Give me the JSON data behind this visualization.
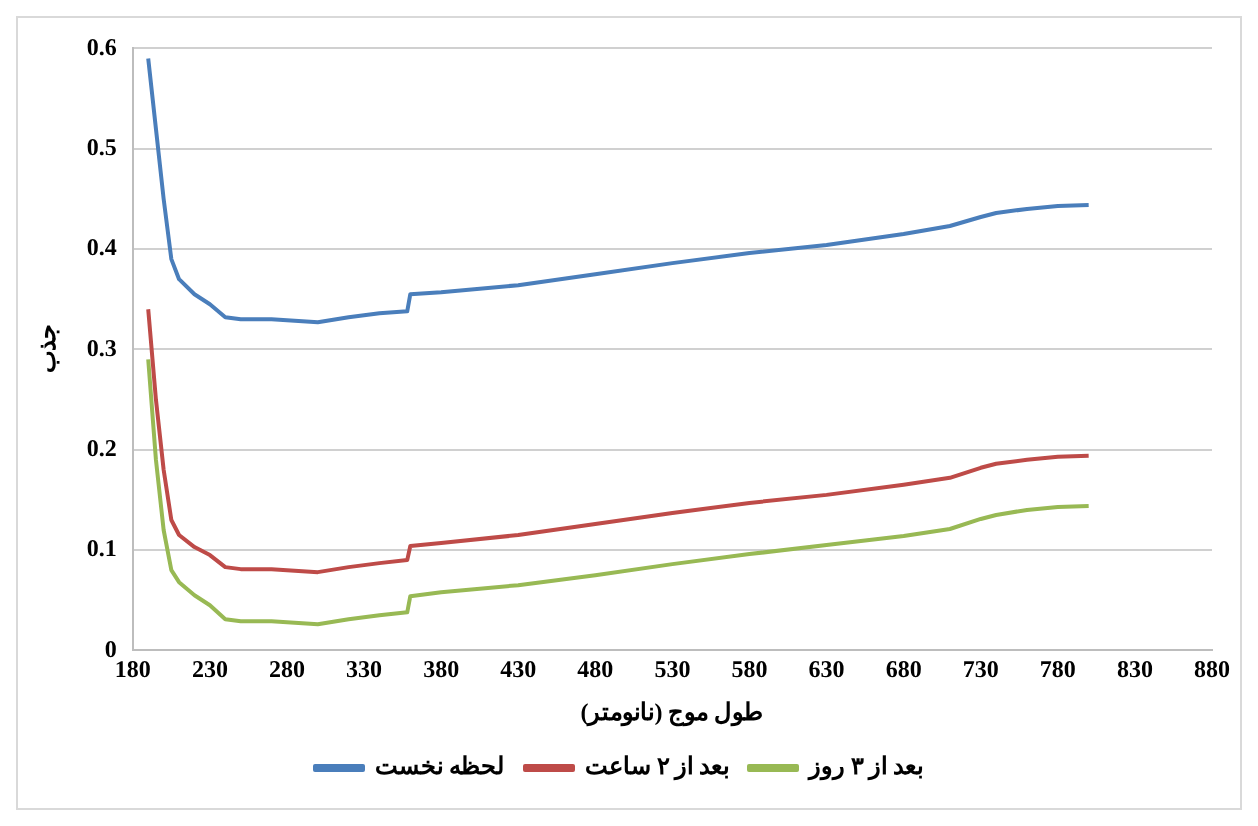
{
  "chart_data": {
    "type": "line",
    "xlabel": "طول موج (نانومتر)",
    "ylabel": "جذب",
    "xlim": [
      180,
      880
    ],
    "xticks": [
      180,
      230,
      280,
      330,
      380,
      430,
      480,
      530,
      580,
      630,
      680,
      730,
      780,
      830,
      880
    ],
    "ylim": [
      0,
      0.6
    ],
    "yticks": [
      0,
      0.1,
      0.2,
      0.3,
      0.4,
      0.5,
      0.6
    ],
    "grid": "y",
    "legend": "bottom",
    "marker": "none",
    "line_style": "solid",
    "series": [
      {
        "name": "لحظه نخست",
        "color": "#4a7ebb",
        "x": [
          190,
          195,
          200,
          205,
          210,
          220,
          230,
          240,
          250,
          270,
          300,
          320,
          340,
          358,
          360,
          380,
          430,
          480,
          530,
          580,
          630,
          680,
          710,
          730,
          740,
          760,
          780,
          800
        ],
        "values": [
          0.59,
          0.52,
          0.45,
          0.39,
          0.37,
          0.355,
          0.345,
          0.332,
          0.33,
          0.33,
          0.327,
          0.332,
          0.336,
          0.338,
          0.355,
          0.357,
          0.364,
          0.375,
          0.386,
          0.396,
          0.404,
          0.415,
          0.423,
          0.432,
          0.436,
          0.44,
          0.443,
          0.444
        ]
      },
      {
        "name": "بعد از ۲ ساعت",
        "color": "#be4b48",
        "x": [
          190,
          195,
          200,
          205,
          210,
          220,
          230,
          240,
          250,
          270,
          300,
          320,
          340,
          358,
          360,
          380,
          430,
          480,
          530,
          580,
          630,
          680,
          710,
          730,
          740,
          760,
          780,
          800
        ],
        "values": [
          0.34,
          0.25,
          0.18,
          0.13,
          0.115,
          0.103,
          0.095,
          0.083,
          0.081,
          0.081,
          0.078,
          0.083,
          0.087,
          0.09,
          0.104,
          0.107,
          0.115,
          0.126,
          0.137,
          0.147,
          0.155,
          0.165,
          0.172,
          0.182,
          0.186,
          0.19,
          0.193,
          0.194
        ]
      },
      {
        "name": "بعد از ۳ روز",
        "color": "#98b954",
        "x": [
          190,
          195,
          200,
          205,
          210,
          220,
          230,
          240,
          250,
          270,
          300,
          320,
          340,
          358,
          360,
          380,
          430,
          480,
          530,
          580,
          630,
          680,
          710,
          730,
          740,
          760,
          780,
          800
        ],
        "values": [
          0.29,
          0.19,
          0.12,
          0.08,
          0.068,
          0.055,
          0.045,
          0.031,
          0.029,
          0.029,
          0.026,
          0.031,
          0.035,
          0.038,
          0.054,
          0.058,
          0.065,
          0.075,
          0.086,
          0.096,
          0.105,
          0.114,
          0.121,
          0.131,
          0.135,
          0.14,
          0.143,
          0.144
        ]
      }
    ]
  }
}
